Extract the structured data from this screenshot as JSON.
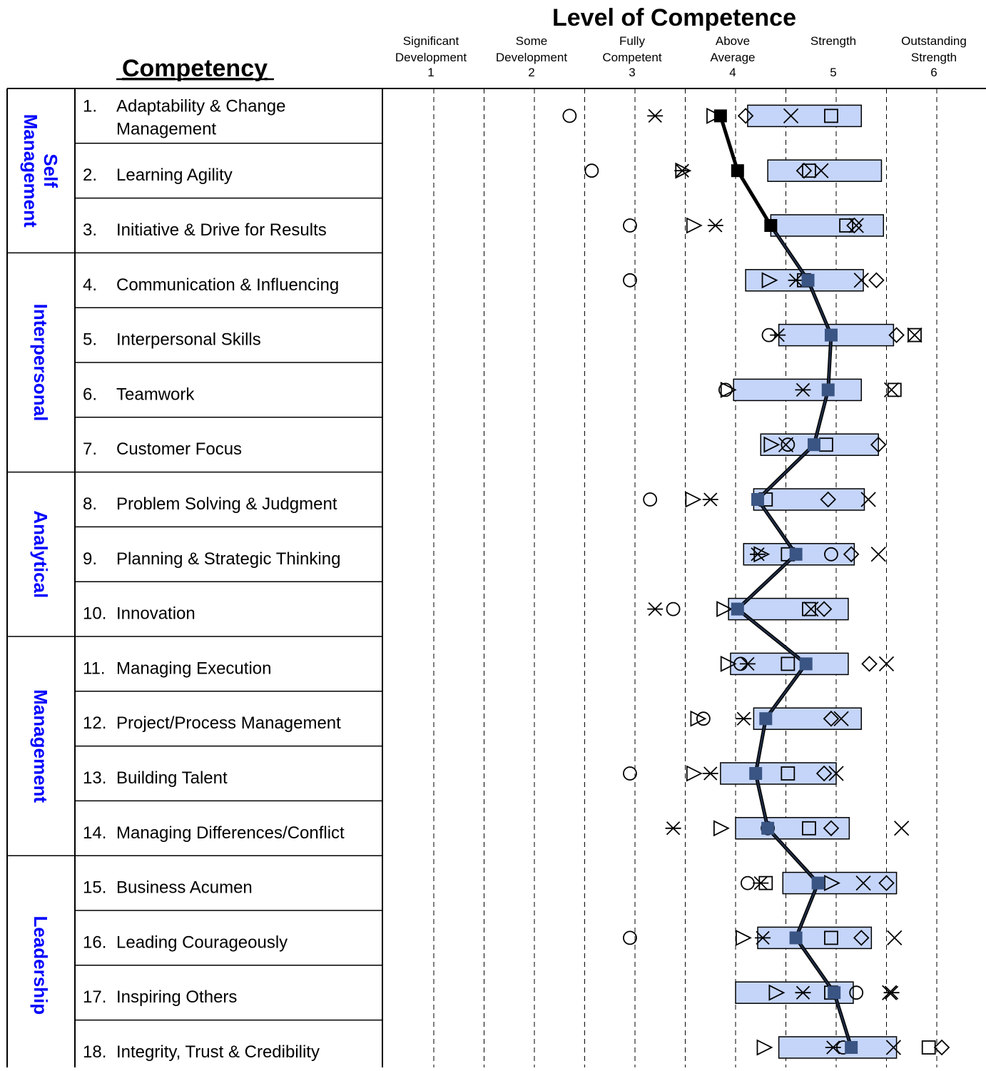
{
  "chart_data": {
    "type": "scatter",
    "title": "Level of Competence",
    "xlabel": "",
    "ylabel": "",
    "xlim": [
      0.5,
      6.5
    ],
    "grid": true,
    "legend": "none",
    "competency_header": "Competency",
    "levels": [
      {
        "value": 1,
        "lines": [
          "Significant",
          "Development"
        ],
        "number": "1"
      },
      {
        "value": 2,
        "lines": [
          "Some",
          "Development"
        ],
        "number": "2"
      },
      {
        "value": 3,
        "lines": [
          "Fully",
          "Competent"
        ],
        "number": "3"
      },
      {
        "value": 4,
        "lines": [
          "Above",
          "Average"
        ],
        "number": "4"
      },
      {
        "value": 5,
        "lines": [
          "Strength"
        ],
        "number": "5"
      },
      {
        "value": 6,
        "lines": [
          "Outstanding",
          "Strength"
        ],
        "number": "6"
      }
    ],
    "groups": [
      {
        "lines": [
          "Self",
          "Management"
        ],
        "start": 0,
        "count": 3
      },
      {
        "lines": [
          "Interpersonal"
        ],
        "start": 3,
        "count": 4
      },
      {
        "lines": [
          "Analytical"
        ],
        "start": 7,
        "count": 3
      },
      {
        "lines": [
          "Management"
        ],
        "start": 10,
        "count": 4
      },
      {
        "lines": [
          "Leadership"
        ],
        "start": 14,
        "count": 4
      }
    ],
    "rows": [
      {
        "num": "1.",
        "lines": [
          "Adaptability & Change",
          "Management"
        ],
        "range": [
          4.12,
          5.25
        ],
        "avg": 3.85,
        "markers": {
          "circle": 2.35,
          "asterisk": 3.2,
          "triangle": 3.78,
          "diamond": 4.1,
          "x": 4.55,
          "square": 4.95
        }
      },
      {
        "num": "2.",
        "lines": [
          "Learning Agility"
        ],
        "range": [
          4.32,
          5.45
        ],
        "avg": 4.02,
        "markers": {
          "circle": 2.57,
          "asterisk": 3.47,
          "triangle": 3.47,
          "diamond": 4.68,
          "square": 4.73,
          "x": 4.85
        }
      },
      {
        "num": "3.",
        "lines": [
          "Initiative & Drive for Results"
        ],
        "range": [
          4.35,
          5.47
        ],
        "avg": 4.35,
        "markers": {
          "circle": 2.95,
          "triangle": 3.58,
          "asterisk": 3.8,
          "square": 5.1,
          "diamond": 5.18,
          "x": 5.2
        }
      },
      {
        "num": "4.",
        "lines": [
          "Communication & Influencing"
        ],
        "range": [
          4.1,
          5.27
        ],
        "avg": 4.72,
        "markers": {
          "circle": 2.95,
          "triangle": 4.33,
          "asterisk": 4.6,
          "square": 4.68,
          "x": 5.25,
          "diamond": 5.4
        }
      },
      {
        "num": "5.",
        "lines": [
          "Interpersonal Skills"
        ],
        "range": [
          4.43,
          5.57
        ],
        "avg": 4.95,
        "markers": {
          "circle": 4.33,
          "asterisk": 4.42,
          "diamond": 5.6,
          "square": 5.78,
          "x": 5.78
        }
      },
      {
        "num": "6.",
        "lines": [
          "Teamwork"
        ],
        "range": [
          3.98,
          5.25
        ],
        "avg": 4.92,
        "markers": {
          "circle": 3.9,
          "triangle": 3.92,
          "asterisk": 4.67,
          "x": 5.55,
          "square": 5.58
        }
      },
      {
        "num": "7.",
        "lines": [
          "Customer Focus"
        ],
        "range": [
          4.25,
          5.42
        ],
        "avg": 4.78,
        "markers": {
          "triangle": 4.35,
          "x": 4.5,
          "circle": 4.52,
          "square": 4.9,
          "diamond": 5.42
        }
      },
      {
        "num": "8.",
        "lines": [
          "Problem Solving & Judgment"
        ],
        "range": [
          4.18,
          5.28
        ],
        "avg": 4.22,
        "markers": {
          "circle": 3.15,
          "triangle": 3.57,
          "asterisk": 3.75,
          "square": 4.3,
          "diamond": 4.92,
          "x": 5.32
        }
      },
      {
        "num": "9.",
        "lines": [
          "Planning & Strategic Thinking"
        ],
        "range": [
          4.08,
          5.18
        ],
        "avg": 4.6,
        "markers": {
          "asterisk": 4.22,
          "triangle": 4.25,
          "square": 4.52,
          "circle": 4.95,
          "diamond": 5.15,
          "x": 5.42
        }
      },
      {
        "num": "10.",
        "lines": [
          "Innovation"
        ],
        "range": [
          3.93,
          5.12
        ],
        "avg": 4.02,
        "markers": {
          "asterisk": 3.2,
          "circle": 3.38,
          "triangle": 3.88,
          "square": 4.73,
          "x": 4.75,
          "diamond": 4.88
        }
      },
      {
        "num": "11.",
        "lines": [
          "Managing Execution"
        ],
        "range": [
          3.95,
          5.12
        ],
        "avg": 4.7,
        "markers": {
          "triangle": 3.92,
          "circle": 4.05,
          "asterisk": 4.12,
          "square": 4.52,
          "diamond": 5.33,
          "x": 5.5
        }
      },
      {
        "num": "12.",
        "lines": [
          "Project/Process Management"
        ],
        "range": [
          4.18,
          5.25
        ],
        "avg": 4.3,
        "markers": {
          "triangle": 3.62,
          "circle": 3.68,
          "asterisk": 4.08,
          "diamond": 4.95,
          "x": 5.05
        }
      },
      {
        "num": "13.",
        "lines": [
          "Building Talent"
        ],
        "range": [
          3.85,
          5.0
        ],
        "avg": 4.2,
        "markers": {
          "circle": 2.95,
          "triangle": 3.58,
          "asterisk": 3.75,
          "square": 4.52,
          "diamond": 4.88,
          "x": 5.0
        }
      },
      {
        "num": "14.",
        "lines": [
          "Managing Differences/Conflict"
        ],
        "range": [
          4.0,
          5.13
        ],
        "avg": 4.32,
        "markers": {
          "asterisk": 3.38,
          "triangle": 3.85,
          "circle": 4.32,
          "square": 4.73,
          "diamond": 4.95,
          "x": 5.65
        }
      },
      {
        "num": "15.",
        "lines": [
          "Business Acumen"
        ],
        "range": [
          4.47,
          5.6
        ],
        "avg": 4.82,
        "markers": {
          "circle": 4.12,
          "asterisk": 4.25,
          "square": 4.3,
          "triangle": 4.95,
          "x": 5.27,
          "diamond": 5.5
        }
      },
      {
        "num": "16.",
        "lines": [
          "Leading Courageously"
        ],
        "range": [
          4.22,
          5.35
        ],
        "avg": 4.6,
        "markers": {
          "circle": 2.95,
          "triangle": 4.07,
          "asterisk": 4.27,
          "square": 4.95,
          "diamond": 5.25,
          "x": 5.58
        }
      },
      {
        "num": "17.",
        "lines": [
          "Inspiring Others"
        ],
        "range": [
          4.0,
          5.17
        ],
        "avg": 4.98,
        "markers": {
          "triangle": 4.4,
          "asterisk": 4.67,
          "square": 4.95,
          "circle": 5.2,
          "x": 5.53,
          "asterisk2": 5.55
        }
      },
      {
        "num": "18.",
        "lines": [
          "Integrity, Trust & Credibility"
        ],
        "range": [
          4.43,
          5.6
        ],
        "avg": 5.15,
        "markers": {
          "triangle": 4.28,
          "asterisk": 4.97,
          "circle": 5.07,
          "x": 5.57,
          "square": 5.92,
          "diamond": 6.05
        }
      }
    ]
  },
  "colors": {
    "range_fill": "#c5d5fa",
    "avg_dark": "#000000",
    "avg_blue": "#3a5584",
    "group_label": "#0000ff",
    "line": "#000000"
  },
  "icons": {
    "circle": "circle-marker-icon",
    "asterisk": "asterisk-marker-icon",
    "asterisk2": "asterisk-marker-icon",
    "triangle": "triangle-marker-icon",
    "diamond": "diamond-marker-icon",
    "x": "x-marker-icon",
    "square": "square-marker-icon"
  }
}
